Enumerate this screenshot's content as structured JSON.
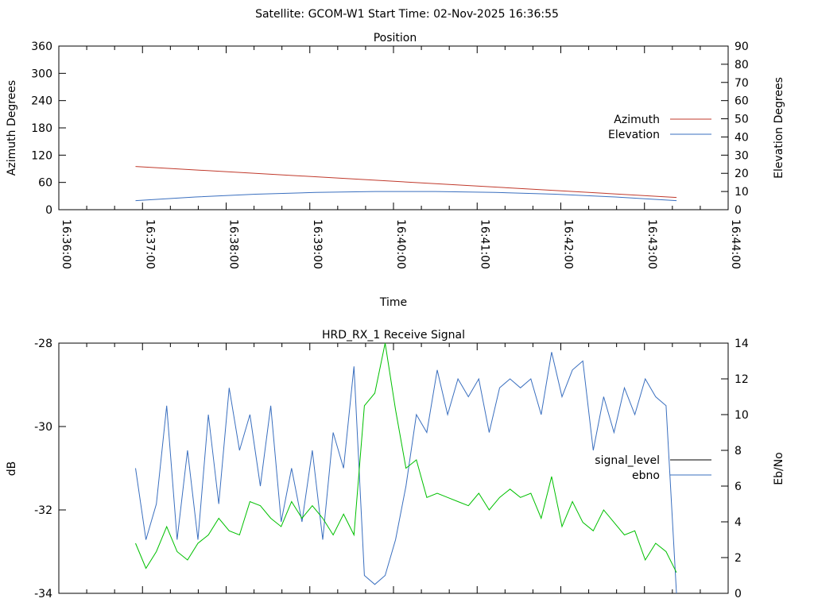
{
  "title": "Satellite: GCOM-W1    Start Time: 02-Nov-2025 16:36:55",
  "chart_data": [
    {
      "type": "line",
      "title": "Position",
      "xlabel": "Time",
      "ylabel": "Azimuth Degrees",
      "y2label": "Elevation Degrees",
      "xlim_s": [
        0,
        480
      ],
      "ylim": [
        0,
        360
      ],
      "y2lim": [
        0,
        90
      ],
      "x_ticks": [
        "16:36:00",
        "16:37:00",
        "16:38:00",
        "16:39:00",
        "16:40:00",
        "16:41:00",
        "16:42:00",
        "16:43:00",
        "16:44:00"
      ],
      "y_ticks": [
        "0",
        "60",
        "120",
        "180",
        "240",
        "300",
        "360"
      ],
      "y2_ticks": [
        "0",
        "10",
        "20",
        "30",
        "40",
        "50",
        "60",
        "70",
        "80",
        "90"
      ],
      "legend_position": "right",
      "series": [
        {
          "name": "Azimuth",
          "axis": "y",
          "color": "#c0392b",
          "t_s": [
            55,
            443
          ],
          "values": [
            95,
            27
          ]
        },
        {
          "name": "Elevation",
          "axis": "y2",
          "color": "#3a6fbf",
          "t_s": [
            55,
            98,
            141,
            184,
            227,
            270,
            313,
            356,
            399,
            443
          ],
          "values": [
            5,
            7,
            8.5,
            9.5,
            10,
            10,
            9.5,
            8.5,
            7,
            5
          ]
        }
      ]
    },
    {
      "type": "line",
      "title": "HRD_RX_1 Receive Signal",
      "ylabel": "dB",
      "y2label": "Eb/No",
      "xlim_s": [
        0,
        480
      ],
      "ylim": [
        -34,
        -28
      ],
      "y2lim": [
        0,
        14
      ],
      "y_ticks": [
        "-34",
        "-32",
        "-30",
        "-28"
      ],
      "y2_ticks": [
        "0",
        "2",
        "4",
        "6",
        "8",
        "10",
        "12",
        "14"
      ],
      "legend_position": "right",
      "time_start_s": 55,
      "time_step_s": 7.46,
      "series": [
        {
          "name": "signal_level",
          "axis": "y",
          "color": "#000000",
          "values": []
        },
        {
          "name": "ebno",
          "axis": "y2",
          "color": "#3a6fbf",
          "values": [
            7,
            3,
            5,
            10.5,
            3,
            8,
            3,
            10,
            5,
            11.5,
            8,
            10,
            6,
            10.5,
            4,
            7,
            4,
            8,
            3,
            9,
            7,
            12.7,
            1,
            0.5,
            1,
            3,
            6,
            10,
            9,
            12.5,
            10,
            12,
            11,
            12,
            9,
            11.5,
            12,
            11.5,
            12,
            10,
            13.5,
            11,
            12.5,
            13,
            8,
            11,
            9,
            11.5,
            10,
            12,
            11,
            10.5,
            0
          ]
        },
        {
          "name": "",
          "axis": "y",
          "color": "#00c000",
          "values": [
            -32.8,
            -33.4,
            -33,
            -32.4,
            -33,
            -33.2,
            -32.8,
            -32.6,
            -32.2,
            -32.5,
            -32.6,
            -31.8,
            -31.9,
            -32.2,
            -32.4,
            -31.8,
            -32.2,
            -31.9,
            -32.2,
            -32.6,
            -32.1,
            -32.6,
            -29.5,
            -29.2,
            -28,
            -29.6,
            -31,
            -30.8,
            -31.7,
            -31.6,
            -31.7,
            -31.8,
            -31.9,
            -31.6,
            -32.0,
            -31.7,
            -31.5,
            -31.7,
            -31.6,
            -32.2,
            -31.2,
            -32.4,
            -31.8,
            -32.3,
            -32.5,
            -32.0,
            -32.3,
            -32.6,
            -32.5,
            -33.2,
            -32.8,
            -33.0,
            -33.5
          ]
        }
      ]
    }
  ]
}
